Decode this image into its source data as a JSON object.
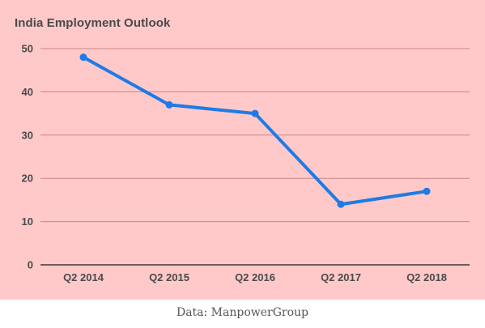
{
  "chart_data": {
    "type": "line",
    "title": "India Employment Outlook",
    "xlabel": "",
    "ylabel": "",
    "categories": [
      "Q2 2014",
      "Q2 2015",
      "Q2 2016",
      "Q2 2017",
      "Q2 2018"
    ],
    "series": [
      {
        "values": [
          48,
          37,
          35,
          14,
          17
        ]
      }
    ],
    "ylim": [
      0,
      50
    ],
    "yticks": [
      0,
      10,
      20,
      30,
      40,
      50
    ],
    "grid": true,
    "legend": "none",
    "colors": {
      "line": "#1e7be6",
      "background": "#ffc9c9",
      "grid": "#c98686",
      "axis": "#1a1a1a"
    }
  },
  "footer": {
    "source": "Data: ManpowerGroup"
  }
}
